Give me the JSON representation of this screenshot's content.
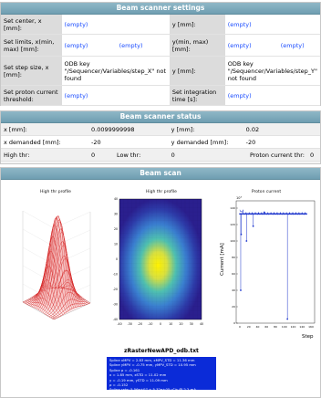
{
  "settings": {
    "title": "Beam scanner settings",
    "rows": [
      {
        "l1": "Set center, x [mm]:",
        "v1a": "(empty)",
        "v1b": "",
        "l2": "y [mm]:",
        "v2a": "(empty)",
        "v2b": ""
      },
      {
        "l1": "Set limits, x(min, max) [mm]:",
        "v1a": "(empty)",
        "v1b": "(empty)",
        "l2": "y(min, max) [mm]:",
        "v2a": "(empty)",
        "v2b": "(empty)"
      },
      {
        "l1": "Set step size, x [mm]:",
        "v1a": "ODB key \"/Sequencer/Variables/step_X\" not found",
        "v1b": "",
        "l2": "y [mm]:",
        "v2a": "ODB key \"/Sequencer/Variables/step_Y\" not found",
        "v2b": ""
      },
      {
        "l1": "Set proton current threshold:",
        "v1a": "(empty)",
        "v1b": "",
        "l2": "Set integration time [s]:",
        "v2a": "(empty)",
        "v2b": ""
      }
    ]
  },
  "status": {
    "title": "Beam scanner status",
    "x_label": "x [mm]:",
    "x_value": "0.0099999998",
    "y_label": "y [mm]:",
    "y_value": "0.02",
    "xd_label": "x demanded [mm]:",
    "xd_value": "-20",
    "yd_label": "y demanded [mm]:",
    "yd_value": "-20",
    "high_label": "High thr:",
    "high_value": "0",
    "low_label": "Low thr:",
    "low_value": "0",
    "proton_label": "Proton current thr:",
    "proton_value": "0"
  },
  "scan": {
    "title": "Beam scan",
    "plot1_title": "High thr profile",
    "plot2_title": "High thr profile",
    "plot3_title": "Proton current",
    "plot2_xticks": [
      "-40",
      "-30",
      "-20",
      "-10",
      "0",
      "10",
      "20",
      "30",
      "40"
    ],
    "plot2_yticks": [
      "40",
      "30",
      "20",
      "10",
      "0",
      "-10",
      "-20",
      "-30",
      "-40"
    ],
    "plot3_ylabel": "Current [mA]",
    "plot3_xlabel": "Step",
    "plot3_exp": "10³",
    "plot3_yticks": [
      "140",
      "120",
      "100",
      "80",
      "60",
      "40",
      "20",
      "0"
    ],
    "plot3_xticks": [
      "0",
      "20",
      "40",
      "60",
      "80",
      "100",
      "120",
      "140",
      "160"
    ],
    "caption": "zRasterNewAPD_odb.txt",
    "info": [
      "Spline xMPV = 2.83 mm, xMPV_STD = 11.36 mm",
      "Spline yMPV = -0.75 mm, yMPV_STD = 10.95 mm",
      "Spline ρ = -0.161",
      "x = 1.85 mm, xSTD = 11.02 mm",
      "y = -0.19 mm, ySTD = 11.09 mm",
      "ρ = -0.152",
      "Spline rate: 5.56e+07 ± 5.32e+05 μ⁺/s @ 2.2 mA"
    ]
  }
}
